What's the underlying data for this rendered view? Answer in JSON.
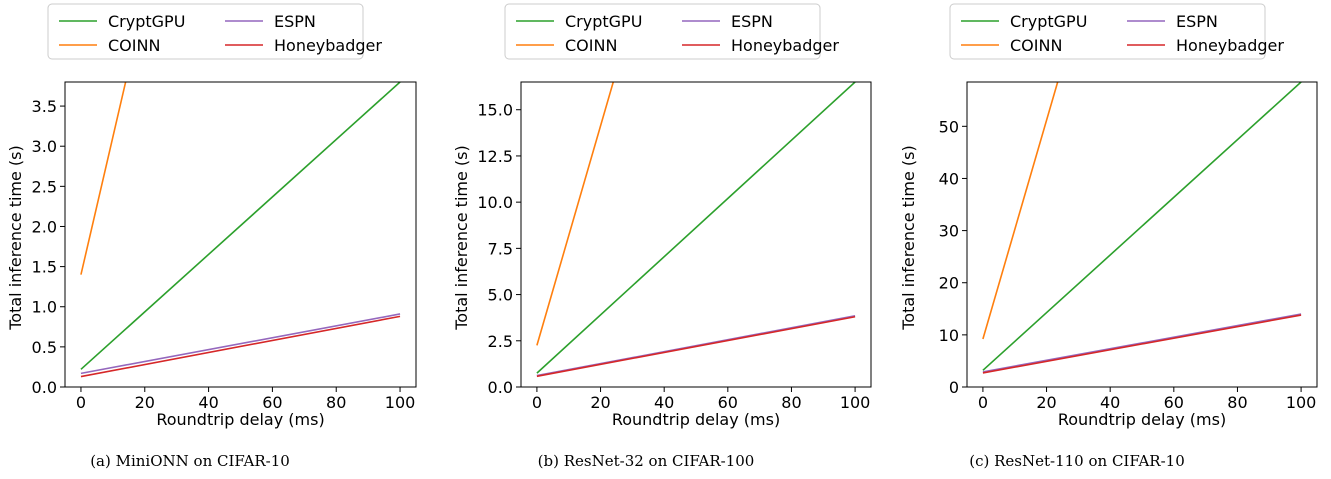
{
  "legend_entries": [
    "CryptGPU",
    "COINN",
    "ESPN",
    "Honeybadger"
  ],
  "series_colors": {
    "CryptGPU": "#2ca02c",
    "COINN": "#ff7f0e",
    "ESPN": "#9467bd",
    "Honeybadger": "#d62728"
  },
  "chart_data": [
    {
      "type": "line",
      "caption": "(a) MiniONN on CIFAR-10",
      "xlabel": "Roundtrip delay (ms)",
      "ylabel": "Total inference time (s)",
      "xlim": [
        -5,
        105
      ],
      "ylim": [
        0,
        3.8
      ],
      "xticks": [
        0,
        20,
        40,
        60,
        80,
        100
      ],
      "yticks": [
        0.0,
        0.5,
        1.0,
        1.5,
        2.0,
        2.5,
        3.0,
        3.5
      ],
      "ytick_labels": [
        "0.0",
        "0.5",
        "1.0",
        "1.5",
        "2.0",
        "2.5",
        "3.0",
        "3.5"
      ],
      "grid": false,
      "legend_position": "top",
      "series": [
        {
          "name": "CryptGPU",
          "x": [
            0,
            100
          ],
          "y": [
            0.22,
            3.8
          ]
        },
        {
          "name": "COINN",
          "x": [
            0,
            14
          ],
          "y": [
            1.4,
            3.8
          ]
        },
        {
          "name": "ESPN",
          "x": [
            0,
            100
          ],
          "y": [
            0.17,
            0.91
          ]
        },
        {
          "name": "Honeybadger",
          "x": [
            0,
            100
          ],
          "y": [
            0.13,
            0.88
          ]
        }
      ]
    },
    {
      "type": "line",
      "caption": "(b) ResNet-32 on CIFAR-100",
      "xlabel": "Roundtrip delay (ms)",
      "ylabel": "Total inference time (s)",
      "xlim": [
        -5,
        105
      ],
      "ylim": [
        0,
        16.5
      ],
      "xticks": [
        0,
        20,
        40,
        60,
        80,
        100
      ],
      "yticks": [
        0.0,
        2.5,
        5.0,
        7.5,
        10.0,
        12.5,
        15.0
      ],
      "ytick_labels": [
        "0.0",
        "2.5",
        "5.0",
        "7.5",
        "10.0",
        "12.5",
        "15.0"
      ],
      "grid": false,
      "legend_position": "top",
      "series": [
        {
          "name": "CryptGPU",
          "x": [
            0,
            100
          ],
          "y": [
            0.75,
            16.5
          ]
        },
        {
          "name": "COINN",
          "x": [
            0,
            24
          ],
          "y": [
            2.25,
            16.5
          ]
        },
        {
          "name": "ESPN",
          "x": [
            0,
            100
          ],
          "y": [
            0.62,
            3.85
          ]
        },
        {
          "name": "Honeybadger",
          "x": [
            0,
            100
          ],
          "y": [
            0.58,
            3.8
          ]
        }
      ]
    },
    {
      "type": "line",
      "caption": "(c) ResNet-110 on CIFAR-10",
      "xlabel": "Roundtrip delay (ms)",
      "ylabel": "Total inference time (s)",
      "xlim": [
        -5,
        105
      ],
      "ylim": [
        0,
        58.5
      ],
      "xticks": [
        0,
        20,
        40,
        60,
        80,
        100
      ],
      "yticks": [
        0,
        10,
        20,
        30,
        40,
        50
      ],
      "ytick_labels": [
        "0",
        "10",
        "20",
        "30",
        "40",
        "50"
      ],
      "grid": false,
      "legend_position": "top",
      "series": [
        {
          "name": "CryptGPU",
          "x": [
            0,
            100
          ],
          "y": [
            3.2,
            58.5
          ]
        },
        {
          "name": "COINN",
          "x": [
            0,
            23.5
          ],
          "y": [
            9.2,
            58.5
          ]
        },
        {
          "name": "ESPN",
          "x": [
            0,
            100
          ],
          "y": [
            2.9,
            14.0
          ]
        },
        {
          "name": "Honeybadger",
          "x": [
            0,
            100
          ],
          "y": [
            2.7,
            13.8
          ]
        }
      ]
    }
  ]
}
